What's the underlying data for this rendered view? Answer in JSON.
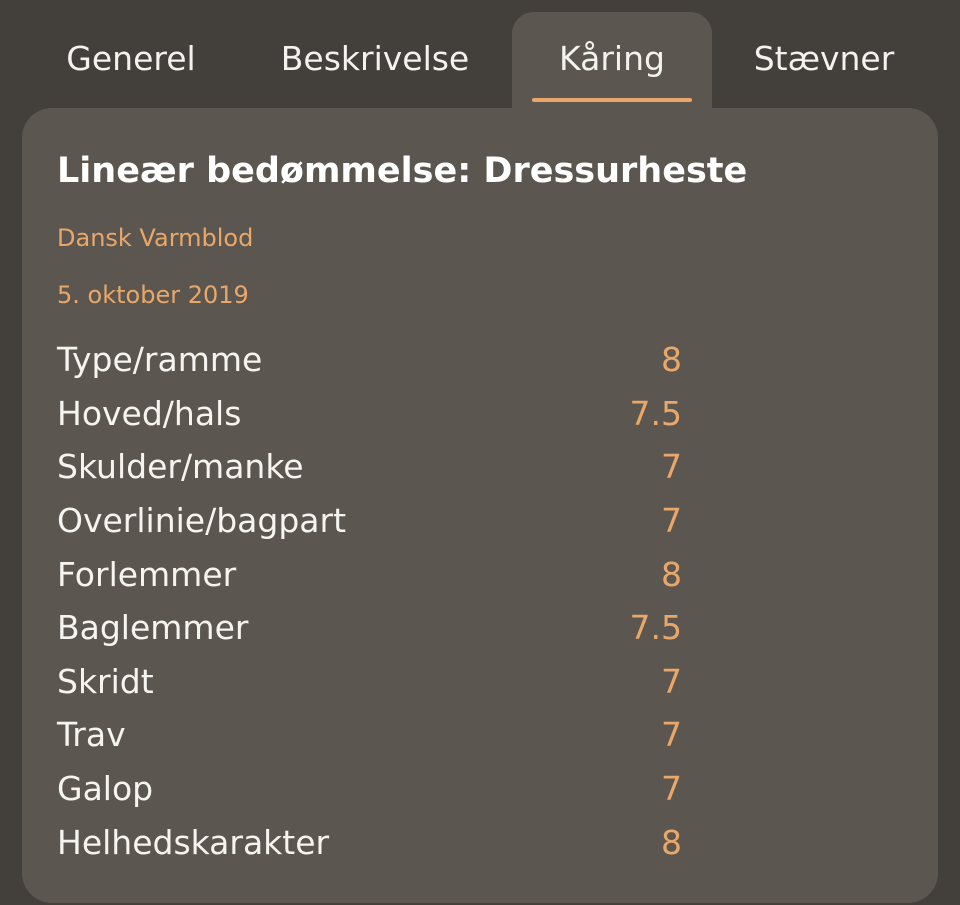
{
  "tabs": [
    {
      "label": "Generel",
      "active": false
    },
    {
      "label": "Beskrivelse",
      "active": false
    },
    {
      "label": "Kåring",
      "active": true
    },
    {
      "label": "Stævner",
      "active": false
    }
  ],
  "panel": {
    "title": "Lineær bedømmelse: Dressurheste",
    "breed": "Dansk Varmblod",
    "date": "5. oktober 2019",
    "scores": [
      {
        "label": "Type/ramme",
        "value": "8"
      },
      {
        "label": "Hoved/hals",
        "value": "7.5"
      },
      {
        "label": "Skulder/manke",
        "value": "7"
      },
      {
        "label": "Overlinie/bagpart",
        "value": "7"
      },
      {
        "label": "Forlemmer",
        "value": "8"
      },
      {
        "label": "Baglemmer",
        "value": "7.5"
      },
      {
        "label": "Skridt",
        "value": "7"
      },
      {
        "label": "Trav",
        "value": "7"
      },
      {
        "label": "Galop",
        "value": "7"
      },
      {
        "label": "Helhedskarakter",
        "value": "8"
      }
    ]
  },
  "colors": {
    "background": "#433f3b",
    "panel": "#5b5750",
    "accent": "#e9a769",
    "text": "#ffffff"
  }
}
